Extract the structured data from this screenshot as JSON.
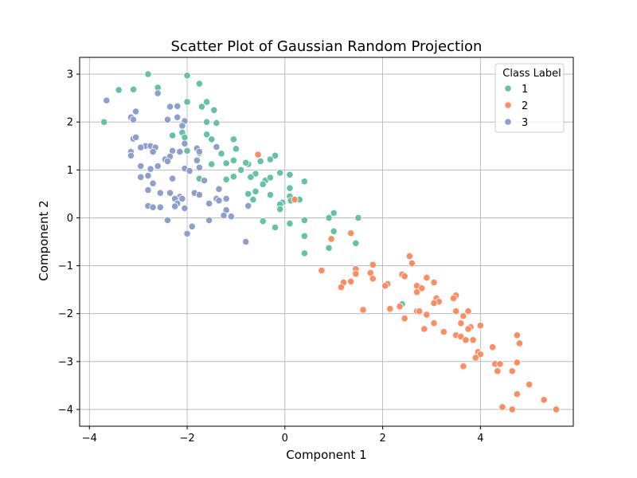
{
  "chart_data": {
    "type": "scatter",
    "title": "Scatter Plot of Gaussian Random Projection",
    "xlabel": "Component 1",
    "ylabel": "Component 2",
    "xlim": [
      -4.2,
      5.9
    ],
    "ylim": [
      -4.35,
      3.35
    ],
    "xticks": [
      -4,
      -2,
      0,
      2,
      4
    ],
    "yticks": [
      -4,
      -3,
      -2,
      -1,
      0,
      1,
      2,
      3
    ],
    "grid": true,
    "legend": {
      "title": "Class Label",
      "position": "top-right"
    },
    "series": [
      {
        "name": "1",
        "color": "#66c2a5",
        "points": [
          [
            -2.8,
            3.0
          ],
          [
            -2.0,
            2.97
          ],
          [
            -1.75,
            2.8
          ],
          [
            -2.6,
            2.72
          ],
          [
            -3.1,
            2.68
          ],
          [
            -3.4,
            2.67
          ],
          [
            -1.6,
            2.42
          ],
          [
            -2.0,
            2.42
          ],
          [
            -1.7,
            2.32
          ],
          [
            -1.45,
            2.25
          ],
          [
            -1.6,
            2.0
          ],
          [
            -1.4,
            1.98
          ],
          [
            -3.7,
            2.0
          ],
          [
            -2.1,
            1.78
          ],
          [
            -2.3,
            1.72
          ],
          [
            -1.6,
            1.74
          ],
          [
            -1.5,
            1.64
          ],
          [
            -1.05,
            1.64
          ],
          [
            -2.05,
            1.68
          ],
          [
            -1.0,
            1.44
          ],
          [
            -1.3,
            1.34
          ],
          [
            -2.0,
            1.4
          ],
          [
            -1.75,
            1.35
          ],
          [
            -0.75,
            1.12
          ],
          [
            -1.5,
            1.12
          ],
          [
            -1.2,
            1.14
          ],
          [
            -1.05,
            1.2
          ],
          [
            -0.5,
            1.18
          ],
          [
            -0.8,
            1.15
          ],
          [
            -0.3,
            1.22
          ],
          [
            -0.2,
            1.3
          ],
          [
            -0.9,
            1.0
          ],
          [
            -0.6,
            0.92
          ],
          [
            -0.4,
            0.78
          ],
          [
            -0.1,
            0.94
          ],
          [
            0.1,
            0.9
          ],
          [
            -1.75,
            0.82
          ],
          [
            -1.2,
            0.8
          ],
          [
            -1.05,
            0.86
          ],
          [
            -0.7,
            0.85
          ],
          [
            -0.3,
            0.84
          ],
          [
            -0.45,
            0.7
          ],
          [
            -0.75,
            0.5
          ],
          [
            -0.6,
            0.55
          ],
          [
            0.1,
            0.62
          ],
          [
            0.1,
            0.45
          ],
          [
            -0.65,
            0.38
          ],
          [
            0.4,
            0.76
          ],
          [
            -0.3,
            0.48
          ],
          [
            0.12,
            0.36
          ],
          [
            -0.05,
            0.32
          ],
          [
            -0.1,
            0.28
          ],
          [
            -0.1,
            0.18
          ],
          [
            0.3,
            0.38
          ],
          [
            1.0,
            0.1
          ],
          [
            0.9,
            0.0
          ],
          [
            1.5,
            0.0
          ],
          [
            -0.45,
            -0.07
          ],
          [
            0.4,
            -0.05
          ],
          [
            0.1,
            -0.12
          ],
          [
            -0.2,
            -0.2
          ],
          [
            1.0,
            -0.28
          ],
          [
            0.4,
            -0.38
          ],
          [
            0.9,
            -0.63
          ],
          [
            1.45,
            -0.53
          ],
          [
            0.4,
            -0.74
          ],
          [
            2.4,
            -1.8
          ]
        ]
      },
      {
        "name": "2",
        "color": "#fc8d62",
        "points": [
          [
            -0.55,
            1.32
          ],
          [
            0.2,
            0.38
          ],
          [
            1.35,
            -0.32
          ],
          [
            0.95,
            -0.44
          ],
          [
            2.55,
            -0.8
          ],
          [
            2.6,
            -0.95
          ],
          [
            1.8,
            -0.98
          ],
          [
            0.75,
            -1.1
          ],
          [
            1.45,
            -1.07
          ],
          [
            1.75,
            -1.15
          ],
          [
            1.8,
            -1.27
          ],
          [
            1.45,
            -1.17
          ],
          [
            2.4,
            -1.18
          ],
          [
            2.45,
            -1.22
          ],
          [
            2.9,
            -1.25
          ],
          [
            1.2,
            -1.35
          ],
          [
            1.35,
            -1.33
          ],
          [
            2.1,
            -1.38
          ],
          [
            3.05,
            -1.35
          ],
          [
            1.15,
            -1.45
          ],
          [
            2.05,
            -1.42
          ],
          [
            2.7,
            -1.42
          ],
          [
            2.8,
            -1.47
          ],
          [
            2.7,
            -1.55
          ],
          [
            3.5,
            -1.62
          ],
          [
            3.45,
            -1.68
          ],
          [
            3.1,
            -1.68
          ],
          [
            3.15,
            -1.75
          ],
          [
            3.05,
            -1.78
          ],
          [
            2.35,
            -1.85
          ],
          [
            1.6,
            -1.92
          ],
          [
            2.15,
            -1.9
          ],
          [
            2.7,
            -1.95
          ],
          [
            2.75,
            -1.95
          ],
          [
            3.5,
            -1.95
          ],
          [
            3.75,
            -1.95
          ],
          [
            2.9,
            -2.02
          ],
          [
            3.65,
            -2.05
          ],
          [
            2.45,
            -2.1
          ],
          [
            3.05,
            -2.2
          ],
          [
            3.6,
            -2.2
          ],
          [
            3.8,
            -2.28
          ],
          [
            3.75,
            -2.32
          ],
          [
            4.0,
            -2.25
          ],
          [
            2.85,
            -2.32
          ],
          [
            3.25,
            -2.38
          ],
          [
            3.5,
            -2.45
          ],
          [
            3.6,
            -2.48
          ],
          [
            3.7,
            -2.55
          ],
          [
            3.85,
            -2.55
          ],
          [
            4.75,
            -2.45
          ],
          [
            4.25,
            -2.7
          ],
          [
            4.8,
            -2.62
          ],
          [
            3.95,
            -2.8
          ],
          [
            4.0,
            -2.85
          ],
          [
            3.9,
            -2.92
          ],
          [
            4.3,
            -3.05
          ],
          [
            4.4,
            -3.05
          ],
          [
            4.75,
            -3.02
          ],
          [
            3.65,
            -3.1
          ],
          [
            4.35,
            -3.2
          ],
          [
            4.65,
            -3.2
          ],
          [
            5.0,
            -3.48
          ],
          [
            4.75,
            -3.68
          ],
          [
            5.3,
            -3.8
          ],
          [
            4.45,
            -3.95
          ],
          [
            4.65,
            -4.0
          ],
          [
            5.55,
            -4.0
          ]
        ]
      },
      {
        "name": "3",
        "color": "#8da0cb",
        "points": [
          [
            -3.65,
            2.45
          ],
          [
            -2.6,
            2.6
          ],
          [
            -2.35,
            2.32
          ],
          [
            -2.2,
            2.33
          ],
          [
            -3.05,
            2.22
          ],
          [
            -3.15,
            2.1
          ],
          [
            -3.1,
            2.05
          ],
          [
            -2.4,
            2.05
          ],
          [
            -2.2,
            2.1
          ],
          [
            -2.05,
            2.02
          ],
          [
            -2.1,
            1.92
          ],
          [
            -3.1,
            1.65
          ],
          [
            -3.05,
            1.68
          ],
          [
            -2.05,
            1.55
          ],
          [
            -2.85,
            1.5
          ],
          [
            -2.75,
            1.5
          ],
          [
            -2.95,
            1.47
          ],
          [
            -2.65,
            1.47
          ],
          [
            -1.8,
            1.45
          ],
          [
            -1.4,
            1.48
          ],
          [
            -2.3,
            1.4
          ],
          [
            -2.15,
            1.38
          ],
          [
            -1.75,
            1.38
          ],
          [
            -3.15,
            1.38
          ],
          [
            -3.15,
            1.3
          ],
          [
            -2.7,
            1.38
          ],
          [
            -2.45,
            1.22
          ],
          [
            -2.35,
            1.28
          ],
          [
            -2.4,
            1.18
          ],
          [
            -1.8,
            1.2
          ],
          [
            -1.75,
            1.05
          ],
          [
            -2.6,
            1.08
          ],
          [
            -2.95,
            1.08
          ],
          [
            -2.75,
            1.02
          ],
          [
            -2.05,
            1.03
          ],
          [
            -1.95,
            0.98
          ],
          [
            -2.95,
            0.85
          ],
          [
            -2.8,
            0.88
          ],
          [
            -2.3,
            0.82
          ],
          [
            -1.65,
            0.78
          ],
          [
            -2.7,
            0.72
          ],
          [
            -1.35,
            0.6
          ],
          [
            -2.8,
            0.58
          ],
          [
            -2.55,
            0.52
          ],
          [
            -2.35,
            0.52
          ],
          [
            -1.85,
            0.52
          ],
          [
            -1.75,
            0.48
          ],
          [
            -2.15,
            0.44
          ],
          [
            -2.25,
            0.4
          ],
          [
            -2.1,
            0.4
          ],
          [
            -1.4,
            0.4
          ],
          [
            -1.2,
            0.4
          ],
          [
            -1.35,
            0.36
          ],
          [
            -1.55,
            0.3
          ],
          [
            -2.2,
            0.3
          ],
          [
            -2.8,
            0.25
          ],
          [
            -2.7,
            0.22
          ],
          [
            -2.55,
            0.22
          ],
          [
            -2.25,
            0.24
          ],
          [
            -2.05,
            0.2
          ],
          [
            -0.75,
            0.25
          ],
          [
            -1.2,
            0.16
          ],
          [
            -1.25,
            0.05
          ],
          [
            -1.1,
            0.03
          ],
          [
            -2.4,
            -0.05
          ],
          [
            -1.55,
            -0.05
          ],
          [
            -1.9,
            -0.18
          ],
          [
            -2.0,
            -0.33
          ],
          [
            -0.8,
            -0.5
          ]
        ]
      }
    ]
  }
}
